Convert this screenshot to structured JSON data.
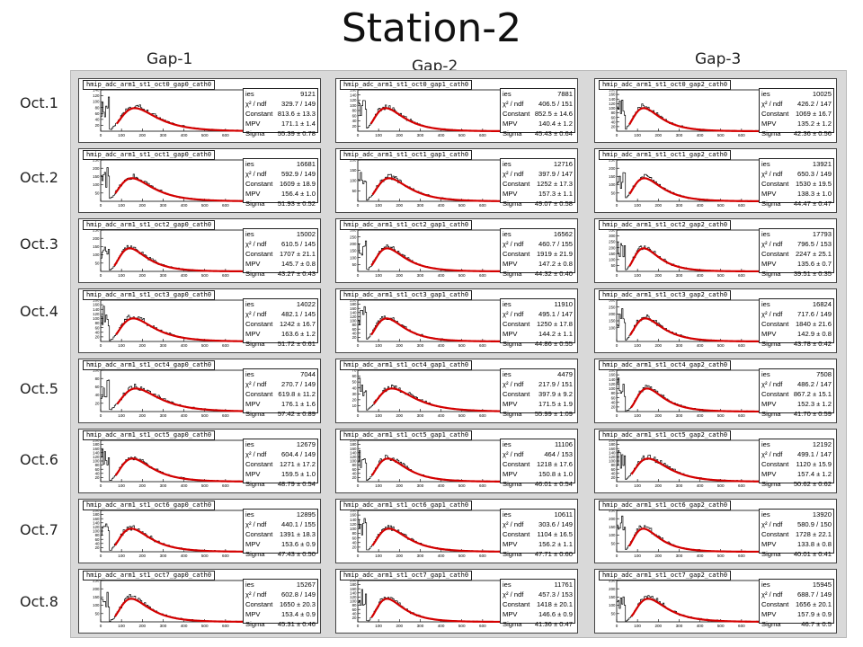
{
  "title": "Station-2",
  "columns": [
    "Gap-1",
    "Gap-2",
    "Gap-3"
  ],
  "rows": [
    "Oct.1",
    "Oct.2",
    "Oct.3",
    "Oct.4",
    "Oct.5",
    "Oct.6",
    "Oct.7",
    "Oct.8"
  ],
  "colors": {
    "fit": "#d40000",
    "hist": "#000000",
    "background": "#d9d9d9"
  },
  "chart_data": {
    "type": "line",
    "panels": [
      {
        "hist": "hmip_adc_arm1_st1_oct0_gap0_cath0",
        "entries_label": "ies",
        "entries": "9121",
        "chi2": "329.7 / 149",
        "constant": "813.6 ± 13.3",
        "mpv": "171.1 ± 1.4",
        "sigma": "55.39 ± 0.78",
        "ymax": 140,
        "x": [
          0,
          100,
          200,
          300,
          400,
          500,
          600
        ],
        "yticks": [
          20,
          40,
          60,
          80,
          100,
          120,
          140
        ]
      },
      {
        "hist": "hmip_adc_arm1_st1_oct0_gap1_cath0",
        "entries_label": "ies",
        "entries": "7881",
        "chi2": "406.5 / 151",
        "constant": "852.5 ± 14.6",
        "mpv": "140.4 ± 1.2",
        "sigma": "45.43 ± 0.64",
        "ymax": 160,
        "x": [
          0,
          100,
          200,
          300,
          400,
          500,
          600
        ],
        "yticks": [
          20,
          40,
          60,
          80,
          100,
          120,
          140,
          160
        ]
      },
      {
        "hist": "hmip_adc_arm1_st1_oct0_gap2_cath0",
        "entries_label": "ies",
        "entries": "10025",
        "chi2": "426.2 / 147",
        "constant": "1069 ± 16.7",
        "mpv": "135.2 ± 1.2",
        "sigma": "42.36 ± 0.56",
        "ymax": 180,
        "x": [
          0,
          100,
          200,
          300,
          400,
          500,
          600
        ],
        "yticks": [
          20,
          40,
          60,
          80,
          100,
          120,
          140,
          160,
          180
        ]
      },
      {
        "hist": "hmip_adc_arm1_st1_oct1_gap0_cath0",
        "entries_label": "ies",
        "entries": "16681",
        "chi2": "592.9 / 149",
        "constant": "1609 ± 18.9",
        "mpv": "156.4 ± 1.0",
        "sigma": "51.93 ± 0.52",
        "ymax": 250,
        "x": [
          0,
          100,
          200,
          300,
          400,
          500,
          600
        ],
        "yticks": [
          50,
          100,
          150,
          200,
          250
        ]
      },
      {
        "hist": "hmip_adc_arm1_st1_oct1_gap1_cath0",
        "entries_label": "ies",
        "entries": "12716",
        "chi2": "397.9 / 147",
        "constant": "1252 ± 17.3",
        "mpv": "157.3 ± 1.1",
        "sigma": "49.07 ± 0.58",
        "ymax": 200,
        "x": [
          0,
          100,
          200,
          300,
          400,
          500,
          600
        ],
        "yticks": [
          50,
          100,
          150,
          200
        ]
      },
      {
        "hist": "hmip_adc_arm1_st1_oct1_gap2_cath0",
        "entries_label": "ies",
        "entries": "13921",
        "chi2": "650.3 / 149",
        "constant": "1530 ± 19.5",
        "mpv": "138.3 ± 1.0",
        "sigma": "44.47 ± 0.47",
        "ymax": 250,
        "x": [
          0,
          100,
          200,
          300,
          400,
          500,
          600
        ],
        "yticks": [
          50,
          100,
          150,
          200,
          250
        ]
      },
      {
        "hist": "hmip_adc_arm1_st1_oct2_gap0_cath0",
        "entries_label": "ies",
        "entries": "15002",
        "chi2": "610.5 / 145",
        "constant": "1707 ± 21.1",
        "mpv": "145.7 ± 0.8",
        "sigma": "43.27 ± 0.43",
        "ymax": 250,
        "x": [
          0,
          100,
          200,
          300,
          400,
          500,
          600
        ],
        "yticks": [
          50,
          100,
          150,
          200,
          250
        ]
      },
      {
        "hist": "hmip_adc_arm1_st1_oct2_gap1_cath0",
        "entries_label": "ies",
        "entries": "16562",
        "chi2": "460.7 / 155",
        "constant": "1919 ± 21.9",
        "mpv": "147.2 ± 0.8",
        "sigma": "44.32 ± 0.40",
        "ymax": 300,
        "x": [
          0,
          100,
          200,
          300,
          400,
          500,
          600
        ],
        "yticks": [
          50,
          100,
          150,
          200,
          250,
          300
        ]
      },
      {
        "hist": "hmip_adc_arm1_st1_oct2_gap2_cath0",
        "entries_label": "ies",
        "entries": "17793",
        "chi2": "796.5 / 153",
        "constant": "2247 ± 25.1",
        "mpv": "135.6 ± 0.7",
        "sigma": "39.51 ± 0.35",
        "ymax": 350,
        "x": [
          0,
          100,
          200,
          300,
          400,
          500,
          600
        ],
        "yticks": [
          50,
          100,
          150,
          200,
          250,
          300,
          350
        ]
      },
      {
        "hist": "hmip_adc_arm1_st1_oct3_gap0_cath0",
        "entries_label": "ies",
        "entries": "14022",
        "chi2": "482.1 / 145",
        "constant": "1242 ± 16.7",
        "mpv": "163.6 ± 1.2",
        "sigma": "51.72 ± 0.61",
        "ymax": 180,
        "x": [
          0,
          100,
          200,
          300,
          400,
          500,
          600
        ],
        "yticks": [
          20,
          40,
          60,
          80,
          100,
          120,
          140,
          160,
          180
        ]
      },
      {
        "hist": "hmip_adc_arm1_st1_oct3_gap1_cath0",
        "entries_label": "ies",
        "entries": "11910",
        "chi2": "495.1 / 147",
        "constant": "1250 ± 17.8",
        "mpv": "144.2 ± 1.1",
        "sigma": "44.86 ± 0.55",
        "ymax": 200,
        "x": [
          0,
          100,
          200,
          300,
          400,
          500,
          600
        ],
        "yticks": [
          20,
          40,
          60,
          80,
          100,
          120,
          140,
          160,
          180,
          200
        ]
      },
      {
        "hist": "hmip_adc_arm1_st1_oct3_gap2_cath0",
        "entries_label": "ies",
        "entries": "16824",
        "chi2": "717.6 / 149",
        "constant": "1840 ± 21.6",
        "mpv": "142.9 ± 0.8",
        "sigma": "43.78 ± 0.42",
        "ymax": 300,
        "x": [
          0,
          100,
          200,
          300,
          400,
          500,
          600
        ],
        "yticks": [
          100,
          150,
          200,
          250,
          300
        ]
      },
      {
        "hist": "hmip_adc_arm1_st1_oct4_gap0_cath0",
        "entries_label": "ies",
        "entries": "7044",
        "chi2": "270.7 / 149",
        "constant": "619.8 ± 11.2",
        "mpv": "176.1 ± 1.6",
        "sigma": "57.42 ± 0.89",
        "ymax": 100,
        "x": [
          0,
          100,
          200,
          300,
          400,
          500,
          600
        ],
        "yticks": [
          20,
          40,
          60,
          80,
          100
        ]
      },
      {
        "hist": "hmip_adc_arm1_st1_oct4_gap1_cath0",
        "entries_label": "ies",
        "entries": "4479",
        "chi2": "217.9 / 151",
        "constant": "397.9 ± 9.2",
        "mpv": "171.5 ± 1.9",
        "sigma": "55.99 ± 1.09",
        "ymax": 70,
        "x": [
          0,
          100,
          200,
          300,
          400,
          500,
          600
        ],
        "yticks": [
          10,
          20,
          30,
          40,
          50,
          60,
          70
        ]
      },
      {
        "hist": "hmip_adc_arm1_st1_oct4_gap2_cath0",
        "entries_label": "ies",
        "entries": "7508",
        "chi2": "486.2 / 147",
        "constant": "867.2 ± 15.1",
        "mpv": "152.3 ± 1.2",
        "sigma": "41.70 ± 0.59",
        "ymax": 180,
        "x": [
          0,
          100,
          200,
          300,
          400,
          500,
          600
        ],
        "yticks": [
          20,
          40,
          60,
          80,
          100,
          120,
          140,
          160,
          180
        ]
      },
      {
        "hist": "hmip_adc_arm1_st1_oct5_gap0_cath0",
        "entries_label": "ies",
        "entries": "12679",
        "chi2": "604.4 / 149",
        "constant": "1271 ± 17.2",
        "mpv": "159.5 ± 1.0",
        "sigma": "48.79 ± 0.54",
        "ymax": 200,
        "x": [
          0,
          100,
          200,
          300,
          400,
          500,
          600
        ],
        "yticks": [
          20,
          40,
          60,
          80,
          100,
          120,
          140,
          160,
          180,
          200
        ]
      },
      {
        "hist": "hmip_adc_arm1_st1_oct5_gap1_cath0",
        "entries_label": "ies",
        "entries": "11106",
        "chi2": "464 / 153",
        "constant": "1218 ± 17.6",
        "mpv": "150.8 ± 1.0",
        "sigma": "46.01 ± 0.54",
        "ymax": 200,
        "x": [
          0,
          100,
          200,
          300,
          400,
          500,
          600
        ],
        "yticks": [
          20,
          40,
          60,
          80,
          100,
          120,
          140,
          160,
          180,
          200
        ]
      },
      {
        "hist": "hmip_adc_arm1_st1_oct5_gap2_cath0",
        "entries_label": "ies",
        "entries": "12192",
        "chi2": "499.1 / 147",
        "constant": "1120 ± 15.9",
        "mpv": "157.4 ± 1.2",
        "sigma": "50.62 ± 0.62",
        "ymax": 200,
        "x": [
          0,
          100,
          200,
          300,
          400,
          500,
          600
        ],
        "yticks": [
          20,
          40,
          60,
          80,
          100,
          120,
          140,
          160,
          180,
          200
        ]
      },
      {
        "hist": "hmip_adc_arm1_st1_oct6_gap0_cath0",
        "entries_label": "ies",
        "entries": "12895",
        "chi2": "440.1 / 155",
        "constant": "1391 ± 18.3",
        "mpv": "153.6 ± 0.9",
        "sigma": "47.43 ± 0.50",
        "ymax": 200,
        "x": [
          0,
          100,
          200,
          300,
          400,
          500,
          600
        ],
        "yticks": [
          20,
          40,
          60,
          80,
          100,
          120,
          140,
          160,
          180,
          200
        ]
      },
      {
        "hist": "hmip_adc_arm1_st1_oct6_gap1_cath0",
        "entries_label": "ies",
        "entries": "10611",
        "chi2": "303.6 / 149",
        "constant": "1104 ± 16.5",
        "mpv": "156.2 ± 1.1",
        "sigma": "47.71 ± 0.60",
        "ymax": 180,
        "x": [
          0,
          100,
          200,
          300,
          400,
          500,
          600
        ],
        "yticks": [
          20,
          40,
          60,
          80,
          100,
          120,
          140,
          160,
          180
        ]
      },
      {
        "hist": "hmip_adc_arm1_st1_oct6_gap2_cath0",
        "entries_label": "ies",
        "entries": "13920",
        "chi2": "580.9 / 150",
        "constant": "1728 ± 22.1",
        "mpv": "133.8 ± 0.8",
        "sigma": "40.01 ± 0.41",
        "ymax": 250,
        "x": [
          0,
          100,
          200,
          300,
          400,
          500,
          600
        ],
        "yticks": [
          50,
          100,
          150,
          200,
          250
        ]
      },
      {
        "hist": "hmip_adc_arm1_st1_oct7_gap0_cath0",
        "entries_label": "ies",
        "entries": "15267",
        "chi2": "602.8 / 149",
        "constant": "1650 ± 20.3",
        "mpv": "153.4 ± 0.9",
        "sigma": "45.31 ± 0.46",
        "ymax": 250,
        "x": [
          0,
          100,
          200,
          300,
          400,
          500,
          600
        ],
        "yticks": [
          50,
          100,
          150,
          200,
          250
        ]
      },
      {
        "hist": "hmip_adc_arm1_st1_oct7_gap1_cath0",
        "entries_label": "ies",
        "entries": "11761",
        "chi2": "457.3 / 153",
        "constant": "1418 ± 20.1",
        "mpv": "146.6 ± 0.9",
        "sigma": "41.36 ± 0.47",
        "ymax": 200,
        "x": [
          0,
          100,
          200,
          300,
          400,
          500,
          600
        ],
        "yticks": [
          20,
          40,
          60,
          80,
          100,
          120,
          140,
          160,
          180,
          200
        ]
      },
      {
        "hist": "hmip_adc_arm1_st1_oct7_gap2_cath0",
        "entries_label": "ies",
        "entries": "15945",
        "chi2": "688.7 / 149",
        "constant": "1656 ± 20.1",
        "mpv": "157.9 ± 0.9",
        "sigma": "46.7 ± 0.5",
        "ymax": 250,
        "x": [
          0,
          100,
          200,
          300,
          400,
          500,
          600
        ],
        "yticks": [
          50,
          100,
          150,
          200,
          250
        ]
      }
    ]
  }
}
